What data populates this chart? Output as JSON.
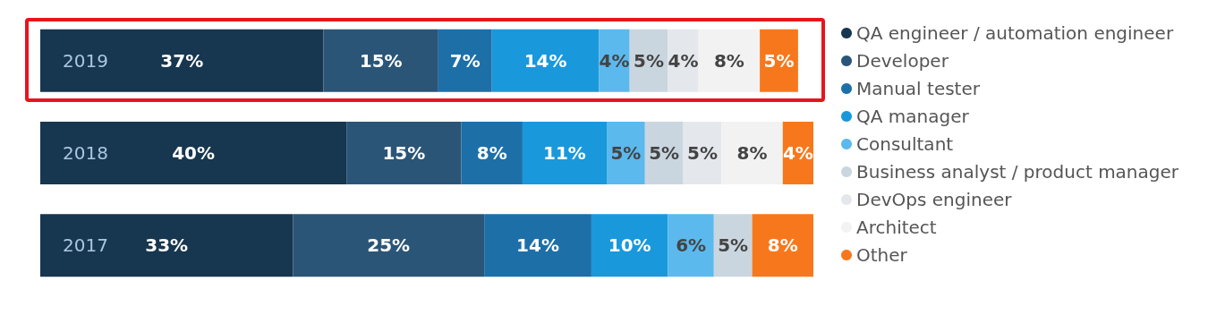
{
  "chart_data": {
    "type": "bar",
    "orientation": "horizontal",
    "stacked": true,
    "legend": "right",
    "grid": false,
    "categories": [
      "2019",
      "2018",
      "2017"
    ],
    "series": [
      {
        "name": "QA engineer / automation engineer",
        "color": "#17364f",
        "values": [
          37,
          40,
          33
        ],
        "value_labels": [
          "37%",
          "40%",
          "33%"
        ]
      },
      {
        "name": "Developer",
        "color": "#2b5577",
        "values": [
          15,
          15,
          25
        ],
        "value_labels": [
          "15%",
          "15%",
          "25%"
        ]
      },
      {
        "name": "Manual tester",
        "color": "#1d6fa8",
        "values": [
          7,
          8,
          14
        ],
        "value_labels": [
          "7%",
          "8%",
          "14%"
        ]
      },
      {
        "name": "QA manager",
        "color": "#1a98dc",
        "values": [
          14,
          11,
          10
        ],
        "value_labels": [
          "14%",
          "11%",
          "10%"
        ]
      },
      {
        "name": "Consultant",
        "color": "#5bb9ee",
        "values": [
          4,
          5,
          6
        ],
        "value_labels": [
          "4%",
          "5%",
          "6%"
        ]
      },
      {
        "name": "Business analyst / product manager",
        "color": "#cad6df",
        "values": [
          5,
          5,
          5
        ],
        "value_labels": [
          "5%",
          "5%",
          "5%"
        ]
      },
      {
        "name": "DevOps engineer",
        "color": "#e4e8ec",
        "values": [
          4,
          5,
          null
        ],
        "value_labels": [
          "4%",
          "5%",
          null
        ]
      },
      {
        "name": "Architect",
        "color": "#f2f2f2",
        "values": [
          8,
          8,
          null
        ],
        "value_labels": [
          "8%",
          "8%",
          null
        ]
      },
      {
        "name": "Other",
        "color": "#f7781c",
        "values": [
          5,
          4,
          8
        ],
        "value_labels": [
          "5%",
          "4%",
          "8%"
        ]
      }
    ]
  }
}
